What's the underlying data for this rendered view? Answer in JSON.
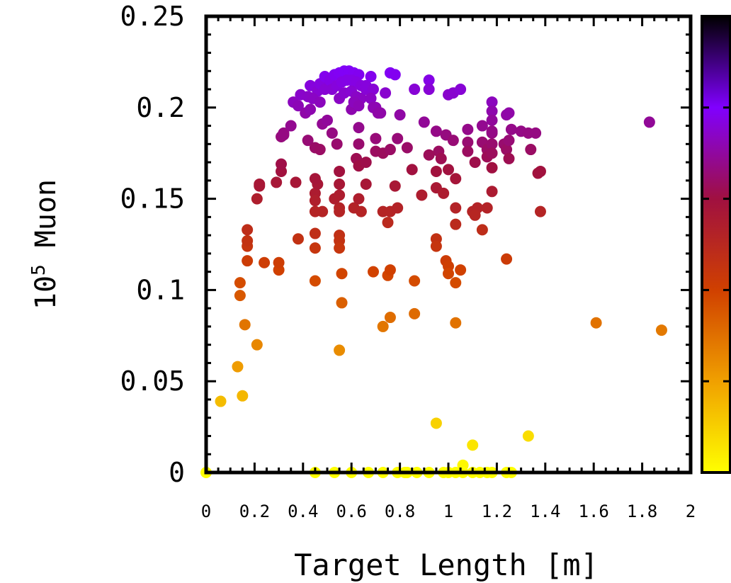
{
  "chart_data": {
    "type": "scatter",
    "xlabel": "Target Length [m]",
    "ylabel_prefix": "10",
    "ylabel_exponent": "5",
    "ylabel_suffix": "Muon",
    "xlim": [
      0,
      2
    ],
    "ylim": [
      0,
      0.25
    ],
    "x_tick_labels": [
      "0",
      "0.2",
      "0.4",
      "0.6",
      "0.8",
      "1",
      "1.2",
      "1.4",
      "1.6",
      "1.8",
      "2"
    ],
    "y_tick_labels": [
      "0",
      "0.05",
      "0.1",
      "0.15",
      "0.2",
      "0.25"
    ],
    "x_ticks": [
      0,
      0.2,
      0.4,
      0.6,
      0.8,
      1.0,
      1.2,
      1.4,
      1.6,
      1.8,
      2.0
    ],
    "y_ticks": [
      0,
      0.05,
      0.1,
      0.15,
      0.2,
      0.25
    ],
    "colorbar": {
      "colors": [
        "#ffff00",
        "#f0a000",
        "#d04000",
        "#a01040",
        "#8000ff",
        "#000000"
      ]
    },
    "grid": false,
    "points": [
      [
        0.0,
        0.0
      ],
      [
        0.06,
        0.039
      ],
      [
        0.13,
        0.058
      ],
      [
        0.15,
        0.042
      ],
      [
        0.16,
        0.081
      ],
      [
        0.21,
        0.07
      ],
      [
        0.14,
        0.097
      ],
      [
        0.14,
        0.104
      ],
      [
        0.17,
        0.116
      ],
      [
        0.24,
        0.115
      ],
      [
        0.17,
        0.124
      ],
      [
        0.17,
        0.127
      ],
      [
        0.17,
        0.133
      ],
      [
        0.21,
        0.15
      ],
      [
        0.22,
        0.157
      ],
      [
        0.22,
        0.158
      ],
      [
        0.29,
        0.159
      ],
      [
        0.31,
        0.184
      ],
      [
        0.32,
        0.185
      ],
      [
        0.32,
        0.186
      ],
      [
        0.35,
        0.19
      ],
      [
        0.31,
        0.165
      ],
      [
        0.31,
        0.169
      ],
      [
        0.37,
        0.159
      ],
      [
        0.3,
        0.111
      ],
      [
        0.3,
        0.115
      ],
      [
        0.38,
        0.128
      ],
      [
        0.45,
        0.123
      ],
      [
        0.45,
        0.131
      ],
      [
        0.45,
        0.105
      ],
      [
        0.36,
        0.203
      ],
      [
        0.39,
        0.207
      ],
      [
        0.42,
        0.206
      ],
      [
        0.43,
        0.212
      ],
      [
        0.46,
        0.209
      ],
      [
        0.47,
        0.213
      ],
      [
        0.49,
        0.217
      ],
      [
        0.38,
        0.201
      ],
      [
        0.41,
        0.197
      ],
      [
        0.43,
        0.199
      ],
      [
        0.44,
        0.205
      ],
      [
        0.47,
        0.203
      ],
      [
        0.49,
        0.21
      ],
      [
        0.42,
        0.182
      ],
      [
        0.45,
        0.178
      ],
      [
        0.47,
        0.177
      ],
      [
        0.48,
        0.191
      ],
      [
        0.5,
        0.193
      ],
      [
        0.52,
        0.186
      ],
      [
        0.54,
        0.18
      ],
      [
        0.45,
        0.153
      ],
      [
        0.46,
        0.158
      ],
      [
        0.45,
        0.161
      ],
      [
        0.45,
        0.143
      ],
      [
        0.45,
        0.149
      ],
      [
        0.48,
        0.143
      ],
      [
        0.51,
        0.215
      ],
      [
        0.53,
        0.218
      ],
      [
        0.55,
        0.219
      ],
      [
        0.57,
        0.22
      ],
      [
        0.59,
        0.22
      ],
      [
        0.61,
        0.219
      ],
      [
        0.63,
        0.218
      ],
      [
        0.52,
        0.21
      ],
      [
        0.54,
        0.212
      ],
      [
        0.56,
        0.214
      ],
      [
        0.58,
        0.215
      ],
      [
        0.6,
        0.215
      ],
      [
        0.62,
        0.214
      ],
      [
        0.64,
        0.212
      ],
      [
        0.55,
        0.205
      ],
      [
        0.57,
        0.208
      ],
      [
        0.6,
        0.209
      ],
      [
        0.62,
        0.206
      ],
      [
        0.64,
        0.205
      ],
      [
        0.66,
        0.21
      ],
      [
        0.68,
        0.217
      ],
      [
        0.66,
        0.212
      ],
      [
        0.69,
        0.21
      ],
      [
        0.7,
        0.2
      ],
      [
        0.72,
        0.197
      ],
      [
        0.74,
        0.208
      ],
      [
        0.76,
        0.219
      ],
      [
        0.78,
        0.218
      ],
      [
        0.55,
        0.165
      ],
      [
        0.55,
        0.158
      ],
      [
        0.55,
        0.152
      ],
      [
        0.55,
        0.145
      ],
      [
        0.55,
        0.143
      ],
      [
        0.53,
        0.15
      ],
      [
        0.55,
        0.13
      ],
      [
        0.55,
        0.127
      ],
      [
        0.55,
        0.123
      ],
      [
        0.56,
        0.109
      ],
      [
        0.56,
        0.093
      ],
      [
        0.55,
        0.067
      ],
      [
        0.6,
        0.199
      ],
      [
        0.61,
        0.203
      ],
      [
        0.63,
        0.201
      ],
      [
        0.62,
        0.172
      ],
      [
        0.63,
        0.189
      ],
      [
        0.63,
        0.18
      ],
      [
        0.63,
        0.168
      ],
      [
        0.66,
        0.17
      ],
      [
        0.66,
        0.158
      ],
      [
        0.64,
        0.143
      ],
      [
        0.61,
        0.145
      ],
      [
        0.63,
        0.15
      ],
      [
        0.68,
        0.205
      ],
      [
        0.69,
        0.2
      ],
      [
        0.71,
        0.197
      ],
      [
        0.7,
        0.183
      ],
      [
        0.7,
        0.176
      ],
      [
        0.73,
        0.175
      ],
      [
        0.76,
        0.177
      ],
      [
        0.73,
        0.143
      ],
      [
        0.75,
        0.137
      ],
      [
        0.76,
        0.143
      ],
      [
        0.79,
        0.145
      ],
      [
        0.78,
        0.157
      ],
      [
        0.69,
        0.11
      ],
      [
        0.75,
        0.108
      ],
      [
        0.76,
        0.111
      ],
      [
        0.73,
        0.08
      ],
      [
        0.76,
        0.085
      ],
      [
        0.86,
        0.105
      ],
      [
        0.86,
        0.087
      ],
      [
        0.8,
        0.196
      ],
      [
        0.79,
        0.183
      ],
      [
        0.83,
        0.178
      ],
      [
        0.85,
        0.166
      ],
      [
        0.89,
        0.152
      ],
      [
        0.86,
        0.21
      ],
      [
        0.92,
        0.215
      ],
      [
        0.92,
        0.21
      ],
      [
        0.9,
        0.192
      ],
      [
        0.95,
        0.187
      ],
      [
        0.96,
        0.176
      ],
      [
        0.97,
        0.172
      ],
      [
        0.99,
        0.185
      ],
      [
        1.02,
        0.182
      ],
      [
        0.92,
        0.174
      ],
      [
        0.95,
        0.165
      ],
      [
        0.95,
        0.156
      ],
      [
        1.0,
        0.166
      ],
      [
        0.98,
        0.153
      ],
      [
        1.03,
        0.161
      ],
      [
        0.95,
        0.128
      ],
      [
        0.95,
        0.124
      ],
      [
        0.99,
        0.116
      ],
      [
        1.0,
        0.113
      ],
      [
        1.0,
        0.109
      ],
      [
        1.05,
        0.111
      ],
      [
        1.03,
        0.104
      ],
      [
        1.03,
        0.145
      ],
      [
        1.03,
        0.136
      ],
      [
        1.1,
        0.143
      ],
      [
        1.12,
        0.145
      ],
      [
        1.11,
        0.141
      ],
      [
        1.16,
        0.145
      ],
      [
        1.14,
        0.133
      ],
      [
        1.0,
        0.207
      ],
      [
        1.02,
        0.208
      ],
      [
        1.05,
        0.21
      ],
      [
        1.08,
        0.181
      ],
      [
        1.08,
        0.188
      ],
      [
        1.08,
        0.176
      ],
      [
        1.11,
        0.17
      ],
      [
        1.14,
        0.181
      ],
      [
        1.16,
        0.177
      ],
      [
        1.16,
        0.173
      ],
      [
        1.14,
        0.19
      ],
      [
        1.18,
        0.186
      ],
      [
        1.18,
        0.203
      ],
      [
        1.18,
        0.198
      ],
      [
        1.18,
        0.193
      ],
      [
        1.18,
        0.187
      ],
      [
        1.18,
        0.18
      ],
      [
        1.18,
        0.175
      ],
      [
        1.18,
        0.167
      ],
      [
        1.18,
        0.154
      ],
      [
        1.23,
        0.18
      ],
      [
        1.24,
        0.196
      ],
      [
        1.25,
        0.197
      ],
      [
        1.26,
        0.188
      ],
      [
        1.24,
        0.177
      ],
      [
        1.25,
        0.182
      ],
      [
        1.25,
        0.172
      ],
      [
        1.3,
        0.187
      ],
      [
        1.33,
        0.186
      ],
      [
        1.36,
        0.186
      ],
      [
        1.34,
        0.177
      ],
      [
        1.37,
        0.164
      ],
      [
        1.38,
        0.165
      ],
      [
        1.38,
        0.143
      ],
      [
        1.24,
        0.117
      ],
      [
        1.03,
        0.082
      ],
      [
        1.61,
        0.082
      ],
      [
        1.88,
        0.078
      ],
      [
        1.83,
        0.192
      ],
      [
        0.95,
        0.027
      ],
      [
        1.1,
        0.015
      ],
      [
        1.33,
        0.02
      ],
      [
        1.06,
        0.004
      ],
      [
        1.18,
        0.0
      ],
      [
        1.13,
        0.0
      ],
      [
        0.45,
        0.0
      ],
      [
        0.6,
        0.0
      ],
      [
        0.73,
        0.0
      ],
      [
        0.79,
        0.0
      ],
      [
        0.87,
        0.0
      ],
      [
        0.92,
        0.0
      ],
      [
        0.98,
        0.0
      ],
      [
        1.0,
        0.0
      ],
      [
        1.03,
        0.0
      ],
      [
        1.06,
        0.0
      ],
      [
        1.16,
        0.0
      ],
      [
        1.24,
        0.0
      ],
      [
        1.26,
        0.0
      ],
      [
        0.53,
        0.0
      ],
      [
        0.67,
        0.0
      ],
      [
        0.82,
        0.0
      ],
      [
        1.1,
        0.0
      ],
      [
        0.83,
        0.0
      ]
    ]
  }
}
